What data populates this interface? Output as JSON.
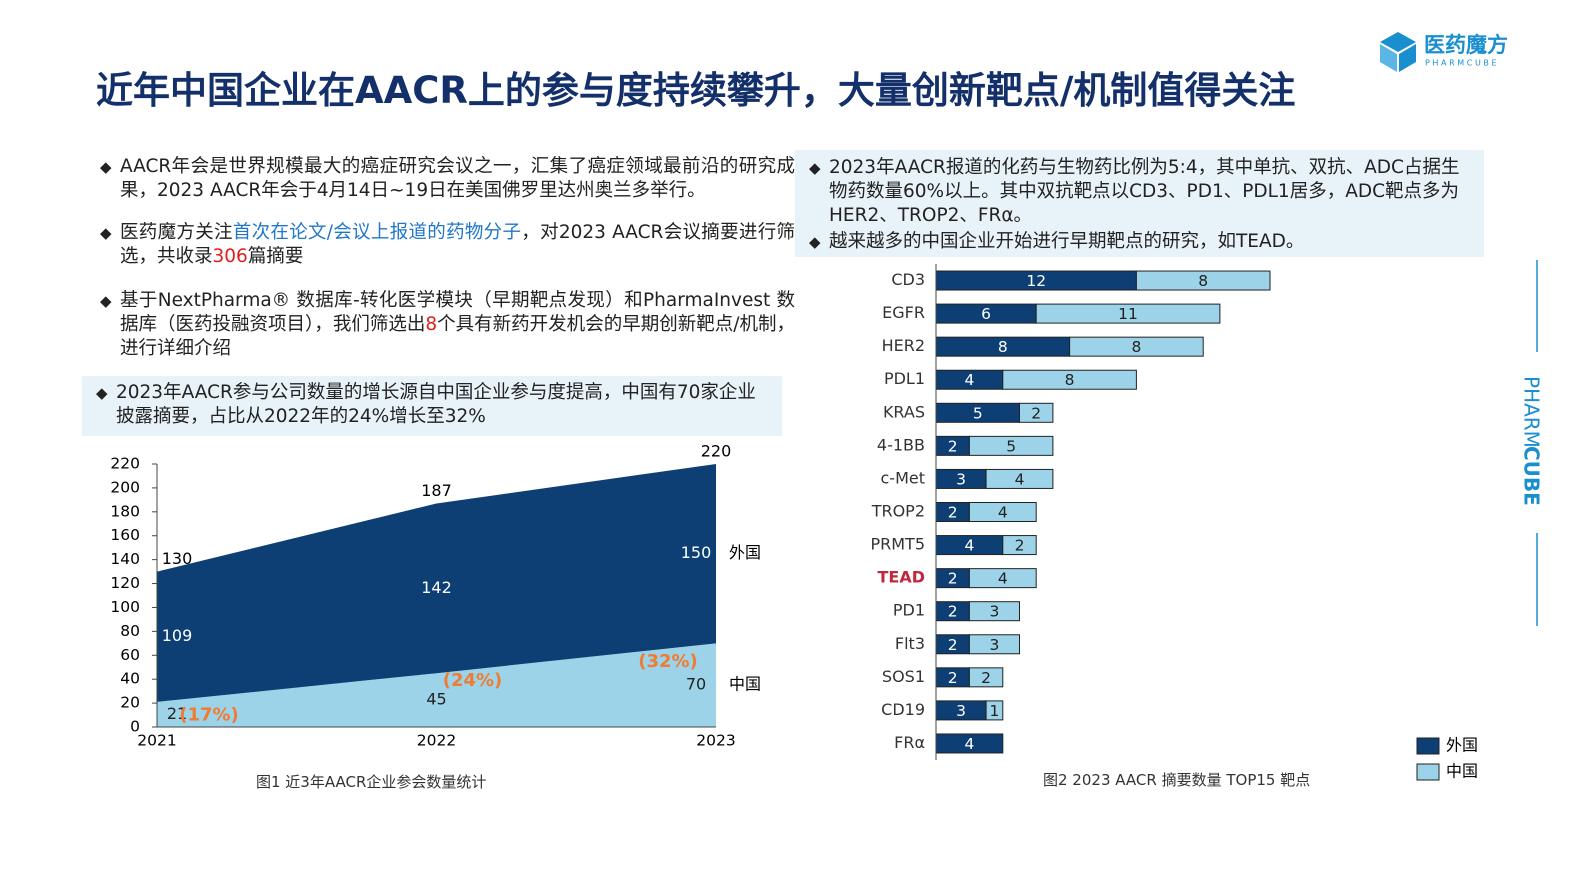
{
  "header": {
    "title": "近年中国企业在AACR上的参与度持续攀升，大量创新靶点/机制值得关注",
    "logo_name": "医药魔方",
    "logo_sub": "PHARMCUBE",
    "side_brand": [
      "PHARM",
      "CUBE"
    ]
  },
  "left_bullets": [
    [
      {
        "text": "AACR年会是世界规模最大的癌症研究会议之一，汇集了癌症领域最前沿的研究成果，2023 AACR年会于4月14日~19日在美国佛罗里达州奥兰多举行。"
      }
    ],
    [
      {
        "text": "医药魔方关注"
      },
      {
        "text": "首次在论文/会议上报道的药物分子",
        "color": "#1f77c9"
      },
      {
        "text": "，对2023 AACR会议摘要进行筛选，共收录"
      },
      {
        "text": "306",
        "color": "#e02020"
      },
      {
        "text": "篇摘要"
      }
    ],
    [
      {
        "text": "基于NextPharma® 数据库-转化医学模块（早期靶点发现）和PharmaInvest 数据库（医药投融资项目），我们筛选出"
      },
      {
        "text": "8",
        "color": "#e02020"
      },
      {
        "text": "个具有新药开发机会的早期创新靶点/机制，进行详细介绍"
      }
    ]
  ],
  "left_box": "2023年AACR参与公司数量的增长源自中国企业参与度提高，中国有70家企业披露摘要，占比从2022年的24%增长至32%",
  "right_box": [
    "2023年AACR报道的化药与生物药比例为5:4，其中单抗、双抗、ADC占据生物药数量60%以上。其中双抗靶点以CD3、PD1、PDL1居多，ADC靶点多为HER2、TROP2、FRα。",
    "越来越多的中国企业开始进行早期靶点的研究，如TEAD。"
  ],
  "chart_data": [
    {
      "type": "area",
      "caption": "图1 近3年AACR企业参会数量统计",
      "categories": [
        "2021",
        "2022",
        "2023"
      ],
      "series": [
        {
          "name": "中国",
          "color": "#9dd3e8",
          "values": [
            21,
            45,
            70
          ]
        },
        {
          "name": "外国",
          "color": "#0d3f75",
          "values": [
            109,
            142,
            150
          ]
        }
      ],
      "totals": [
        130,
        187,
        220
      ],
      "shares": [
        17,
        24,
        32
      ],
      "share_labels": [
        "(17%)",
        "(24%)",
        "(32%)"
      ],
      "share_color": "#f07b32",
      "ylim": [
        0,
        220
      ],
      "yticks": [
        0,
        20,
        40,
        60,
        80,
        100,
        120,
        140,
        160,
        180,
        200,
        220
      ]
    },
    {
      "type": "hbar",
      "caption": "图2 2023 AACR 摘要数量 TOP15 靶点",
      "categories": [
        "CD3",
        "EGFR",
        "HER2",
        "PDL1",
        "KRAS",
        "4-1BB",
        "c-Met",
        "TROP2",
        "PRMT5",
        "TEAD",
        "PD1",
        "Flt3",
        "SOS1",
        "CD19",
        "FRα"
      ],
      "category_colors": [
        "#333",
        "#333",
        "#333",
        "#333",
        "#333",
        "#333",
        "#333",
        "#333",
        "#333",
        "#c0283e",
        "#333",
        "#333",
        "#333",
        "#333",
        "#333"
      ],
      "series": [
        {
          "name": "外国",
          "color": "#0d3f75",
          "values": [
            12,
            6,
            8,
            4,
            5,
            2,
            3,
            2,
            4,
            2,
            2,
            2,
            2,
            3,
            4
          ]
        },
        {
          "name": "中国",
          "color": "#9dd3e8",
          "values": [
            8,
            11,
            8,
            8,
            2,
            5,
            4,
            4,
            2,
            4,
            3,
            3,
            2,
            1,
            null
          ]
        }
      ]
    }
  ]
}
